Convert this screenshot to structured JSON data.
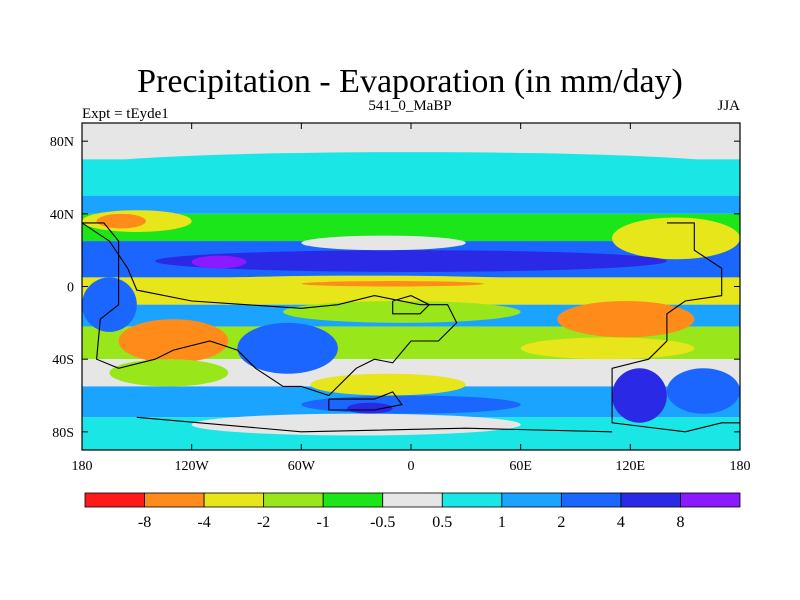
{
  "chart_data": {
    "type": "heatmap",
    "title": "Precipitation - Evaporation (in mm/day)",
    "left_string": "Expt = tEyde1",
    "center_string": "541_0_MaBP",
    "right_string": "JJA",
    "x_ticks": [
      "180",
      "120W",
      "60W",
      "0",
      "60E",
      "120E",
      "180"
    ],
    "y_ticks": [
      "80N",
      "40N",
      "0",
      "40S",
      "80S"
    ],
    "xlim": [
      -180,
      180
    ],
    "ylim": [
      -90,
      90
    ],
    "x_tick_values": [
      -180,
      -120,
      -60,
      0,
      60,
      120,
      180
    ],
    "y_tick_values": [
      80,
      40,
      0,
      -40,
      -80
    ],
    "colorbar": {
      "labels": [
        "-8",
        "-4",
        "-2",
        "-1",
        "-0.5",
        "0.5",
        "1",
        "2",
        "4",
        "8"
      ],
      "colors": [
        "#ff1a1a",
        "#ff8c1a",
        "#e6e61a",
        "#99e61a",
        "#1ae61a",
        "#e6e6e6",
        "#1ae6e6",
        "#1aa3ff",
        "#1a66ff",
        "#2a2ae6",
        "#8c1aff"
      ]
    },
    "zonal_bands": [
      {
        "lat": [
          70,
          90
        ],
        "color": "#e6e6e6"
      },
      {
        "lat": [
          50,
          70
        ],
        "color": "#1ae6e6"
      },
      {
        "lat": [
          40,
          50
        ],
        "color": "#1aa3ff"
      },
      {
        "lat": [
          25,
          40
        ],
        "color": "#1ae61a"
      },
      {
        "lat": [
          5,
          25
        ],
        "color": "#1a66ff"
      },
      {
        "lat": [
          -10,
          5
        ],
        "color": "#e6e61a"
      },
      {
        "lat": [
          -22,
          -10
        ],
        "color": "#1aa3ff"
      },
      {
        "lat": [
          -40,
          -22
        ],
        "color": "#99e61a"
      },
      {
        "lat": [
          -55,
          -40
        ],
        "color": "#e6e6e6"
      },
      {
        "lat": [
          -72,
          -55
        ],
        "color": "#1aa3ff"
      },
      {
        "lat": [
          -90,
          -72
        ],
        "color": "#1ae6e6"
      }
    ],
    "patches": [
      {
        "name": "north-pole-cap",
        "lon": [
          -165,
          180
        ],
        "lat": [
          78,
          90
        ],
        "color": "#e6e6e6"
      },
      {
        "name": "northern-cyan-belt",
        "lon": [
          -180,
          180
        ],
        "lat": [
          58,
          74
        ],
        "color": "#1ae6e6"
      },
      {
        "name": "subtropical-yellow-west",
        "lon": [
          -180,
          -120
        ],
        "lat": [
          30,
          42
        ],
        "color": "#e6e61a"
      },
      {
        "name": "subtropical-orange-west",
        "lon": [
          -172,
          -145
        ],
        "lat": [
          32,
          40
        ],
        "color": "#ff8c1a"
      },
      {
        "name": "subtropical-yellow-east",
        "lon": [
          110,
          180
        ],
        "lat": [
          15,
          38
        ],
        "color": "#e6e61a"
      },
      {
        "name": "itcz-deep",
        "lon": [
          -140,
          140
        ],
        "lat": [
          8,
          20
        ],
        "color": "#2a2ae6"
      },
      {
        "name": "itcz-core",
        "lon": [
          -120,
          -90
        ],
        "lat": [
          10,
          17
        ],
        "color": "#8c1aff"
      },
      {
        "name": "equatorial-white-gap",
        "lon": [
          -60,
          30
        ],
        "lat": [
          20,
          28
        ],
        "color": "#e6e6e6"
      },
      {
        "name": "equatorial-yellow",
        "lon": [
          -150,
          100
        ],
        "lat": [
          -5,
          6
        ],
        "color": "#e6e61a"
      },
      {
        "name": "equatorial-orange-streak",
        "lon": [
          -60,
          40
        ],
        "lat": [
          0,
          3
        ],
        "color": "#ff8c1a"
      },
      {
        "name": "southern-green",
        "lon": [
          -70,
          60
        ],
        "lat": [
          -20,
          -8
        ],
        "color": "#99e61a"
      },
      {
        "name": "south-pacific-blue",
        "lon": [
          -180,
          -150
        ],
        "lat": [
          -25,
          5
        ],
        "color": "#1a66ff"
      },
      {
        "name": "s-hem-orange-west",
        "lon": [
          -160,
          -100
        ],
        "lat": [
          -42,
          -18
        ],
        "color": "#ff8c1a"
      },
      {
        "name": "s-hem-green-west",
        "lon": [
          -165,
          -100
        ],
        "lat": [
          -55,
          -40
        ],
        "color": "#99e61a"
      },
      {
        "name": "s-hem-blue-central",
        "lon": [
          -95,
          -40
        ],
        "lat": [
          -48,
          -20
        ],
        "color": "#1a66ff"
      },
      {
        "name": "s-hem-yellow-central",
        "lon": [
          -55,
          30
        ],
        "lat": [
          -60,
          -48
        ],
        "color": "#e6e61a"
      },
      {
        "name": "s-hem-orange-east",
        "lon": [
          80,
          155
        ],
        "lat": [
          -28,
          -8
        ],
        "color": "#ff8c1a"
      },
      {
        "name": "s-hem-yellow-east",
        "lon": [
          60,
          155
        ],
        "lat": [
          -40,
          -28
        ],
        "color": "#e6e61a"
      },
      {
        "name": "s-hem-deep-blue-east",
        "lon": [
          110,
          140
        ],
        "lat": [
          -75,
          -45
        ],
        "color": "#2a2ae6"
      },
      {
        "name": "s-hem-blue-east",
        "lon": [
          140,
          180
        ],
        "lat": [
          -70,
          -45
        ],
        "color": "#1a66ff"
      },
      {
        "name": "antarctic-blue",
        "lon": [
          -60,
          60
        ],
        "lat": [
          -70,
          -60
        ],
        "color": "#1a66ff"
      },
      {
        "name": "antarctic-deep",
        "lon": [
          -35,
          -10
        ],
        "lat": [
          -70,
          -64
        ],
        "color": "#2a2ae6"
      },
      {
        "name": "antarctic-white",
        "lon": [
          -120,
          60
        ],
        "lat": [
          -82,
          -70
        ],
        "color": "#e6e6e6"
      }
    ],
    "coastlines": [
      {
        "name": "western-continent",
        "points": [
          [
            -180,
            35
          ],
          [
            -168,
            35
          ],
          [
            -160,
            25
          ],
          [
            -160,
            -10
          ],
          [
            -170,
            -18
          ],
          [
            -172,
            -40
          ],
          [
            -160,
            -45
          ],
          [
            -140,
            -40
          ],
          [
            -130,
            -35
          ],
          [
            -110,
            -30
          ],
          [
            -95,
            -35
          ],
          [
            -85,
            -45
          ],
          [
            -70,
            -55
          ],
          [
            -60,
            -55
          ],
          [
            -45,
            -60
          ],
          [
            -30,
            -45
          ],
          [
            -20,
            -40
          ],
          [
            -10,
            -42
          ],
          [
            0,
            -30
          ],
          [
            15,
            -30
          ],
          [
            25,
            -20
          ],
          [
            20,
            -10
          ],
          [
            5,
            -10
          ],
          [
            -20,
            -5
          ],
          [
            -40,
            -10
          ],
          [
            -60,
            -12
          ],
          [
            -90,
            -10
          ],
          [
            -120,
            -8
          ],
          [
            -150,
            -2
          ],
          [
            -155,
            10
          ],
          [
            -165,
            25
          ],
          [
            -180,
            35
          ]
        ]
      },
      {
        "name": "southern-island",
        "points": [
          [
            -45,
            -62
          ],
          [
            -20,
            -62
          ],
          [
            -10,
            -58
          ],
          [
            -5,
            -65
          ],
          [
            -20,
            -68
          ],
          [
            -45,
            -68
          ],
          [
            -45,
            -62
          ]
        ]
      },
      {
        "name": "small-island-center",
        "points": [
          [
            -10,
            -8
          ],
          [
            0,
            -5
          ],
          [
            10,
            -10
          ],
          [
            5,
            -15
          ],
          [
            -10,
            -15
          ],
          [
            -10,
            -8
          ]
        ]
      },
      {
        "name": "eastern-continent",
        "points": [
          [
            140,
            35
          ],
          [
            155,
            35
          ],
          [
            155,
            20
          ],
          [
            170,
            10
          ],
          [
            170,
            -5
          ],
          [
            150,
            -8
          ],
          [
            140,
            -15
          ],
          [
            140,
            -30
          ],
          [
            130,
            -40
          ],
          [
            110,
            -45
          ],
          [
            110,
            -75
          ],
          [
            150,
            -80
          ],
          [
            170,
            -75
          ],
          [
            180,
            -75
          ]
        ]
      },
      {
        "name": "southern-rim",
        "points": [
          [
            -150,
            -72
          ],
          [
            -60,
            -80
          ],
          [
            30,
            -78
          ],
          [
            110,
            -80
          ]
        ]
      }
    ]
  }
}
